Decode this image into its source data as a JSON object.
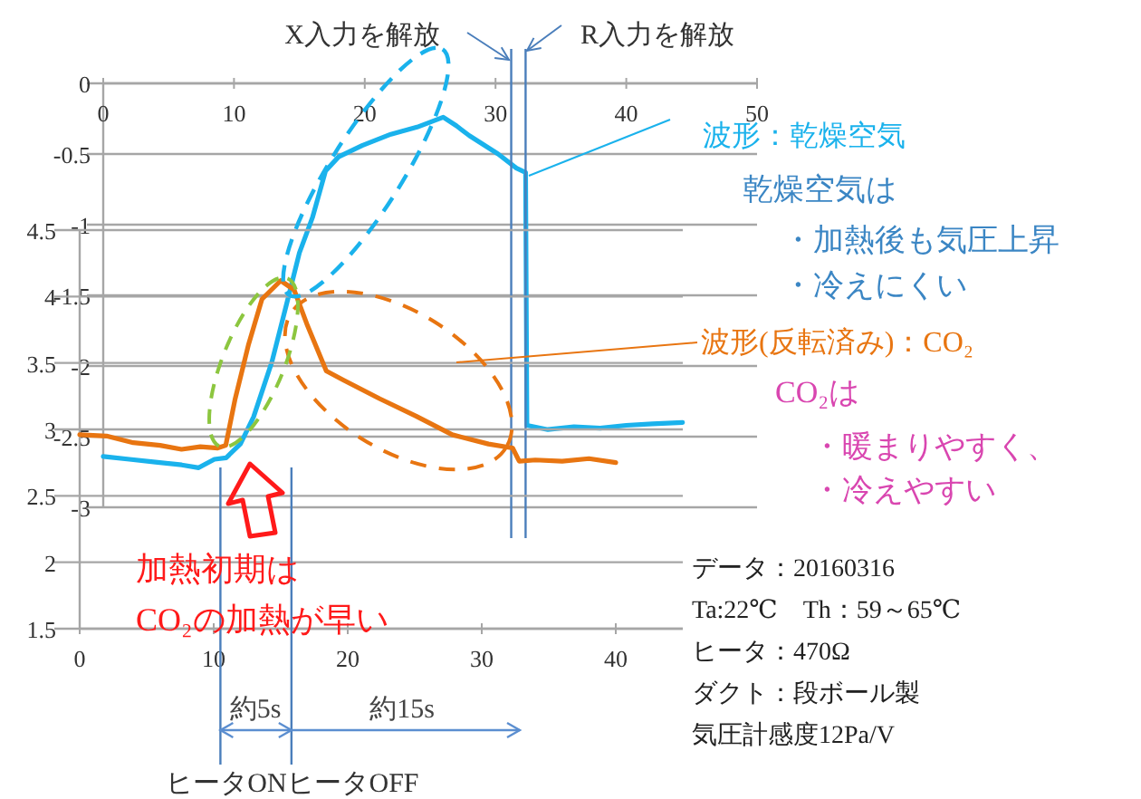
{
  "chart_data": [
    {
      "type": "line",
      "xlim": [
        0,
        50
      ],
      "xticks": [
        0,
        10,
        20,
        30,
        40,
        50
      ],
      "ylim": [
        -3,
        0
      ],
      "yticks": [
        0,
        -0.5,
        -1,
        -1.5,
        -2,
        -2.5,
        -3
      ],
      "grid": "y",
      "series": [
        {
          "name": "波形：乾燥空気",
          "color": "#1ab2ec",
          "x": [
            0,
            2,
            4,
            6,
            7.3,
            8.5,
            9.4,
            10.5,
            11.5,
            12.9,
            14.3,
            15,
            16,
            17,
            18,
            19.8,
            22,
            24,
            26,
            27,
            28,
            30.2,
            31.6,
            32.3,
            32.4,
            34,
            36,
            38,
            40,
            42,
            44.3
          ],
          "values": [
            -2.64,
            -2.66,
            -2.68,
            -2.7,
            -2.72,
            -2.66,
            -2.65,
            -2.55,
            -2.36,
            -1.97,
            -1.46,
            -1.2,
            -0.95,
            -0.62,
            -0.52,
            -0.44,
            -0.36,
            -0.31,
            -0.24,
            -0.3,
            -0.37,
            -0.5,
            -0.6,
            -0.63,
            -2.42,
            -2.45,
            -2.43,
            -2.44,
            -2.42,
            -2.41,
            -2.4
          ]
        }
      ],
      "ref_lines": [
        {
          "axis": "x",
          "value": 31.2,
          "label": "X入力を解放",
          "color": "#4a7ebb"
        },
        {
          "axis": "x",
          "value": 32.3,
          "label": "R入力を解放",
          "color": "#4a7ebb"
        }
      ],
      "annotations": [
        "乾燥空気は",
        "・加熱後も気圧上昇",
        "・冷えにくい"
      ]
    },
    {
      "type": "line",
      "xlim": [
        0,
        45
      ],
      "xticks": [
        0,
        10,
        20,
        30,
        40
      ],
      "ylim": [
        1.5,
        4.5
      ],
      "yticks": [
        4.5,
        4,
        3.5,
        3,
        2.5,
        2,
        1.5
      ],
      "grid": "y",
      "series": [
        {
          "name": "波形(反転済み)：CO₂",
          "color": "#e87511",
          "x": [
            0,
            2,
            4,
            6,
            7.6,
            9,
            10.3,
            10.9,
            11.6,
            12.6,
            13.6,
            15,
            16,
            17,
            18.4,
            19.7,
            22.4,
            25.1,
            27.8,
            30.5,
            32.3,
            32.8,
            34,
            36,
            38,
            40
          ],
          "values": [
            2.96,
            2.95,
            2.9,
            2.88,
            2.85,
            2.87,
            2.86,
            2.88,
            3.23,
            3.64,
            3.98,
            4.12,
            4.05,
            3.78,
            3.44,
            3.37,
            3.23,
            3.1,
            2.96,
            2.89,
            2.86,
            2.76,
            2.77,
            2.76,
            2.78,
            2.75
          ]
        }
      ],
      "ref_lines": [
        {
          "axis": "x",
          "value": 10.5,
          "label": "ヒータON",
          "color": "#4a7ebb"
        },
        {
          "axis": "x",
          "value": 15.8,
          "label": "ヒータOFF",
          "color": "#4a7ebb"
        }
      ],
      "annotations": [
        "CO₂は",
        "・暖まりやすく、",
        "・冷えやすい",
        "加熱初期は",
        "CO₂の加熱が早い",
        "約5s",
        "約15s",
        "データ：20160316",
        "Ta:22℃　Th：59～65℃",
        "ヒータ：470Ω",
        "ダクト：段ボール製",
        "気圧計感度12Pa/V"
      ]
    }
  ]
}
